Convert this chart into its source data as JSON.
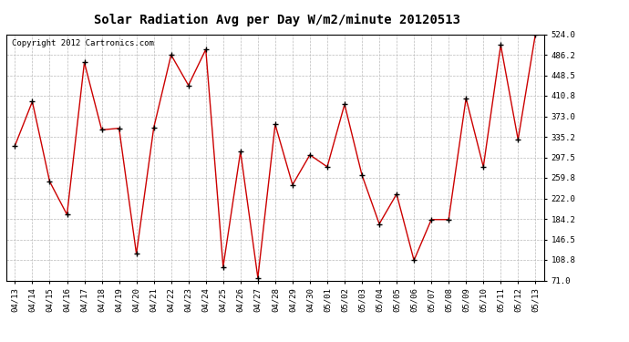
{
  "title": "Solar Radiation Avg per Day W/m2/minute 20120513",
  "copyright": "Copyright 2012 Cartronics.com",
  "labels": [
    "04/13",
    "04/14",
    "04/15",
    "04/16",
    "04/17",
    "04/18",
    "04/19",
    "04/20",
    "04/21",
    "04/22",
    "04/23",
    "04/24",
    "04/25",
    "04/26",
    "04/27",
    "04/28",
    "04/29",
    "04/30",
    "05/01",
    "05/02",
    "05/03",
    "05/04",
    "05/05",
    "05/06",
    "05/07",
    "05/08",
    "05/09",
    "05/10",
    "05/11",
    "05/12",
    "05/13"
  ],
  "values": [
    319,
    400,
    253,
    192,
    472,
    348,
    351,
    120,
    352,
    486,
    430,
    496,
    96,
    308,
    76,
    358,
    247,
    302,
    280,
    395,
    265,
    175,
    230,
    108,
    183,
    183,
    406,
    280,
    504,
    330,
    524
  ],
  "line_color": "#cc0000",
  "marker": "+",
  "marker_color": "#000000",
  "bg_color": "#ffffff",
  "grid_color": "#bbbbbb",
  "ylim": [
    71.0,
    524.0
  ],
  "yticks": [
    71.0,
    108.8,
    146.5,
    184.2,
    222.0,
    259.8,
    297.5,
    335.2,
    373.0,
    410.8,
    448.5,
    486.2,
    524.0
  ],
  "title_fontsize": 10,
  "copyright_fontsize": 6.5,
  "tick_fontsize": 6.5
}
